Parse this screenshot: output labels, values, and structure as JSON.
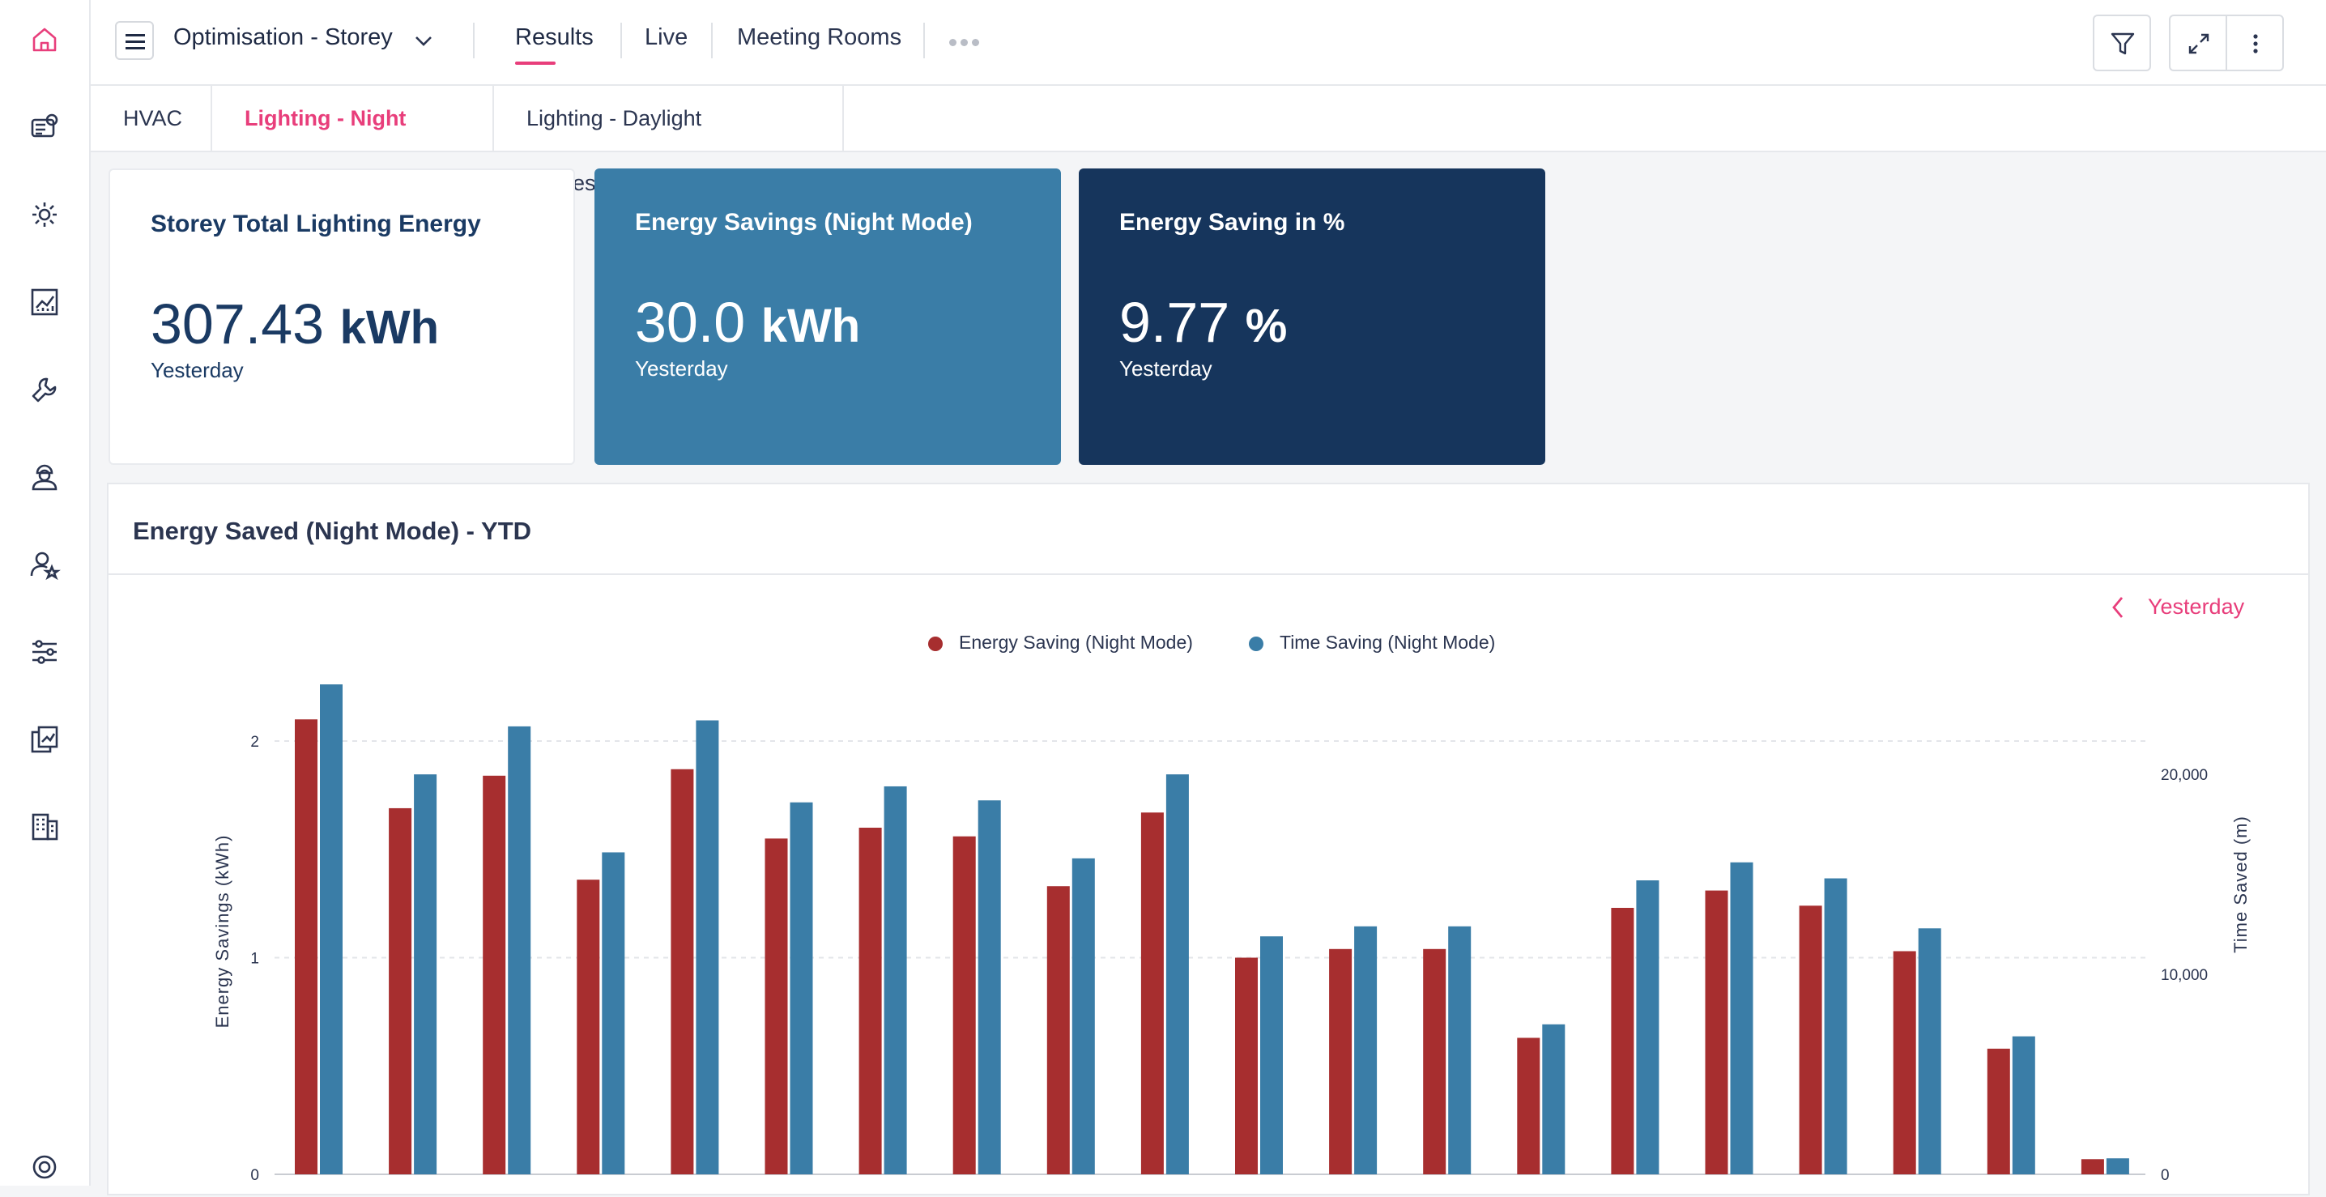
{
  "header": {
    "dashboard_title": "Optimisation - Storey",
    "tabs": [
      {
        "label": "Results",
        "active": true
      },
      {
        "label": "Live",
        "active": false
      },
      {
        "label": "Meeting Rooms",
        "active": false
      }
    ]
  },
  "subtabs": [
    {
      "label": "HVAC",
      "active": false
    },
    {
      "label": "Lighting - Night Mode",
      "active": true
    },
    {
      "label": "Lighting - Daylight Harvesting",
      "active": false
    }
  ],
  "kpis": [
    {
      "title": "Storey Total Lighting Energy",
      "value": "307.43",
      "unit": "kWh",
      "period": "Yesterday",
      "bg": "#ffffff",
      "fg": "#1a3a63"
    },
    {
      "title": "Energy Savings (Night Mode)",
      "value": "30.0",
      "unit": "kWh",
      "period": "Yesterday",
      "bg": "#3a7da7",
      "fg": "#ffffff"
    },
    {
      "title": "Energy Saving in %",
      "value": "9.77",
      "unit": "%",
      "period": "Yesterday",
      "bg": "#16355c",
      "fg": "#ffffff"
    }
  ],
  "chart_panel": {
    "title": "Energy Saved (Night Mode) - YTD",
    "date_label": "Yesterday"
  },
  "colors": {
    "accent": "#e83e7b",
    "series_energy": "#a72e2f",
    "series_time": "#3a7da7"
  },
  "chart_data": {
    "type": "bar",
    "legend_position": "top-center",
    "y_left": {
      "label": "Energy Savings (kWh)",
      "ticks": [
        "0",
        "1",
        "2"
      ],
      "range": [
        0,
        2.4
      ]
    },
    "y_right": {
      "label": "Time Saved (m)",
      "ticks": [
        "0",
        "10,000",
        "20,000"
      ],
      "range": [
        0,
        26000
      ]
    },
    "series": [
      {
        "name": "Energy Saving (Night Mode)",
        "axis": "left",
        "values": [
          2.1,
          1.69,
          1.84,
          1.36,
          1.87,
          1.55,
          1.6,
          1.56,
          1.33,
          1.67,
          1.0,
          1.04,
          1.04,
          0.63,
          1.23,
          1.31,
          1.24,
          1.03,
          0.58,
          0.07
        ]
      },
      {
        "name": "Time Saving (Night Mode)",
        "axis": "right",
        "values": [
          24500,
          20000,
          22400,
          16100,
          22700,
          18600,
          19400,
          18700,
          15800,
          20000,
          11900,
          12400,
          12400,
          7500,
          14700,
          15600,
          14800,
          12300,
          6900,
          800
        ]
      }
    ]
  }
}
